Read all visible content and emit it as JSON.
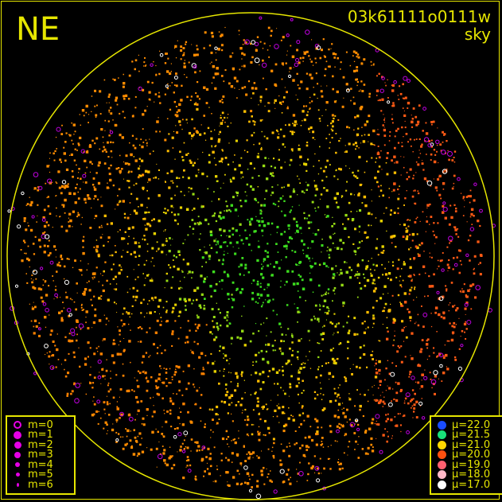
{
  "corner_label": "NE",
  "title": {
    "id": "03k61111o0111w",
    "subtitle": "sky"
  },
  "colors": {
    "frame": "#e6e600",
    "background": "#000000",
    "marker_m": "#e600e6"
  },
  "magnitude_legend": [
    {
      "label": "m=0",
      "style": "open"
    },
    {
      "label": "m=1",
      "style": "filled"
    },
    {
      "label": "m=2",
      "style": "filled"
    },
    {
      "label": "m=3",
      "style": "filled"
    },
    {
      "label": "m=4",
      "style": "filled"
    },
    {
      "label": "m=5",
      "style": "filled"
    },
    {
      "label": "m=6",
      "style": "filled"
    }
  ],
  "mu_legend": [
    {
      "label": "μ=22.0",
      "color": "#1a4cff"
    },
    {
      "label": "μ=21.5",
      "color": "#19e07a"
    },
    {
      "label": "μ=21.0",
      "color": "#ffd700"
    },
    {
      "label": "μ=20.0",
      "color": "#ff5010"
    },
    {
      "label": "μ=19.0",
      "color": "#ff6070"
    },
    {
      "label": "μ=18.0",
      "color": "#ffb8c8"
    },
    {
      "label": "μ=17.0",
      "color": "#ffffff"
    }
  ]
}
